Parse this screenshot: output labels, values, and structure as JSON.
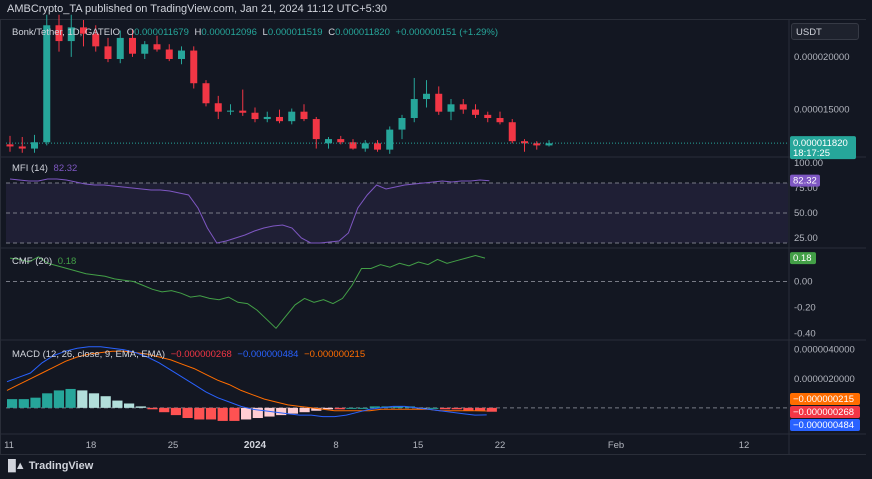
{
  "publisher": "AMBCrypto_TA published on TradingView.com, Jan 21, 2024 11:12 UTC+5:30",
  "brand": "TradingView",
  "currency": "USDT",
  "colors": {
    "up": "#26a69a",
    "down": "#f23645",
    "mfi": "#7e57c2",
    "cmf": "#43a047",
    "macd": "#2962ff",
    "signal": "#ff6d00",
    "hist_up_strong": "#26a69a",
    "hist_up_weak": "#b2dfdb",
    "hist_down_strong": "#ff5252",
    "hist_down_weak": "#ffcdd2"
  },
  "price_legend": {
    "symbol": "Bonk/Tether, 1D, GATEIO",
    "o_label": "O",
    "o": "0.000011679",
    "h_label": "H",
    "h": "0.000012096",
    "l_label": "L",
    "l": "0.000011519",
    "c_label": "C",
    "c": "0.000011820",
    "change": "+0.000000151 (+1.29%)"
  },
  "mfi_legend": {
    "name": "MFI (14)",
    "value": "82.32"
  },
  "cmf_legend": {
    "name": "CMF (20)",
    "value": "0.18"
  },
  "macd_legend": {
    "name": "MACD (12, 26, close, 9, EMA, EMA)",
    "hist": "−0.000000268",
    "macd": "−0.000000484",
    "signal": "−0.000000215"
  },
  "chart_data": [
    {
      "type": "candlestick",
      "name": "Bonk/Tether, 1D, GATEIO",
      "ylim": [
        1.05e-05,
        2.35e-05
      ],
      "y_ticks": [
        "0.000020000",
        "0.000015000"
      ],
      "x_ticks": [
        "11",
        "18",
        "25",
        "2024",
        "8",
        "15",
        "22",
        "Feb",
        "12"
      ],
      "last_price": "0.000011820",
      "countdown": "18:17:25",
      "candles": [
        {
          "o": 1.17e-05,
          "h": 1.25e-05,
          "l": 1.1e-05,
          "c": 1.15e-05
        },
        {
          "o": 1.15e-05,
          "h": 1.24e-05,
          "l": 1.09e-05,
          "c": 1.13e-05
        },
        {
          "o": 1.13e-05,
          "h": 1.26e-05,
          "l": 1.09e-05,
          "c": 1.19e-05
        },
        {
          "o": 1.19e-05,
          "h": 2.4e-05,
          "l": 1.16e-05,
          "c": 2.3e-05
        },
        {
          "o": 2.3e-05,
          "h": 2.4e-05,
          "l": 2.05e-05,
          "c": 2.15e-05
        },
        {
          "o": 2.15e-05,
          "h": 2.4e-05,
          "l": 2e-05,
          "c": 2.28e-05
        },
        {
          "o": 2.28e-05,
          "h": 2.35e-05,
          "l": 2.1e-05,
          "c": 2.22e-05
        },
        {
          "o": 2.22e-05,
          "h": 2.3e-05,
          "l": 2.05e-05,
          "c": 2.1e-05
        },
        {
          "o": 2.1e-05,
          "h": 2.18e-05,
          "l": 1.95e-05,
          "c": 1.98e-05
        },
        {
          "o": 1.98e-05,
          "h": 2.25e-05,
          "l": 1.94e-05,
          "c": 2.18e-05
        },
        {
          "o": 2.18e-05,
          "h": 2.26e-05,
          "l": 2e-05,
          "c": 2.03e-05
        },
        {
          "o": 2.03e-05,
          "h": 2.15e-05,
          "l": 1.98e-05,
          "c": 2.12e-05
        },
        {
          "o": 2.12e-05,
          "h": 2.2e-05,
          "l": 2.05e-05,
          "c": 2.07e-05
        },
        {
          "o": 2.07e-05,
          "h": 2.12e-05,
          "l": 1.96e-05,
          "c": 1.98e-05
        },
        {
          "o": 1.98e-05,
          "h": 2.1e-05,
          "l": 1.93e-05,
          "c": 2.06e-05
        },
        {
          "o": 2.06e-05,
          "h": 2.1e-05,
          "l": 1.7e-05,
          "c": 1.75e-05
        },
        {
          "o": 1.75e-05,
          "h": 1.78e-05,
          "l": 1.53e-05,
          "c": 1.56e-05
        },
        {
          "o": 1.56e-05,
          "h": 1.63e-05,
          "l": 1.41e-05,
          "c": 1.48e-05
        },
        {
          "o": 1.48e-05,
          "h": 1.55e-05,
          "l": 1.45e-05,
          "c": 1.49e-05
        },
        {
          "o": 1.49e-05,
          "h": 1.69e-05,
          "l": 1.44e-05,
          "c": 1.47e-05
        },
        {
          "o": 1.47e-05,
          "h": 1.52e-05,
          "l": 1.38e-05,
          "c": 1.41e-05
        },
        {
          "o": 1.41e-05,
          "h": 1.48e-05,
          "l": 1.38e-05,
          "c": 1.43e-05
        },
        {
          "o": 1.43e-05,
          "h": 1.5e-05,
          "l": 1.37e-05,
          "c": 1.39e-05
        },
        {
          "o": 1.39e-05,
          "h": 1.51e-05,
          "l": 1.36e-05,
          "c": 1.48e-05
        },
        {
          "o": 1.48e-05,
          "h": 1.55e-05,
          "l": 1.39e-05,
          "c": 1.41e-05
        },
        {
          "o": 1.41e-05,
          "h": 1.43e-05,
          "l": 1.13e-05,
          "c": 1.22e-05
        },
        {
          "o": 1.18e-05,
          "h": 1.24e-05,
          "l": 1.13e-05,
          "c": 1.22e-05
        },
        {
          "o": 1.22e-05,
          "h": 1.25e-05,
          "l": 1.17e-05,
          "c": 1.19e-05
        },
        {
          "o": 1.19e-05,
          "h": 1.22e-05,
          "l": 1.12e-05,
          "c": 1.13e-05
        },
        {
          "o": 1.13e-05,
          "h": 1.21e-05,
          "l": 1.1e-05,
          "c": 1.18e-05
        },
        {
          "o": 1.18e-05,
          "h": 1.21e-05,
          "l": 1.1e-05,
          "c": 1.12e-05
        },
        {
          "o": 1.12e-05,
          "h": 1.34e-05,
          "l": 1.08e-05,
          "c": 1.31e-05
        },
        {
          "o": 1.31e-05,
          "h": 1.45e-05,
          "l": 1.22e-05,
          "c": 1.42e-05
        },
        {
          "o": 1.42e-05,
          "h": 1.8e-05,
          "l": 1.38e-05,
          "c": 1.6e-05
        },
        {
          "o": 1.6e-05,
          "h": 1.78e-05,
          "l": 1.52e-05,
          "c": 1.65e-05
        },
        {
          "o": 1.65e-05,
          "h": 1.72e-05,
          "l": 1.45e-05,
          "c": 1.48e-05
        },
        {
          "o": 1.48e-05,
          "h": 1.6e-05,
          "l": 1.4e-05,
          "c": 1.55e-05
        },
        {
          "o": 1.55e-05,
          "h": 1.6e-05,
          "l": 1.46e-05,
          "c": 1.5e-05
        },
        {
          "o": 1.5e-05,
          "h": 1.55e-05,
          "l": 1.42e-05,
          "c": 1.45e-05
        },
        {
          "o": 1.45e-05,
          "h": 1.48e-05,
          "l": 1.38e-05,
          "c": 1.42e-05
        },
        {
          "o": 1.42e-05,
          "h": 1.48e-05,
          "l": 1.36e-05,
          "c": 1.38e-05
        },
        {
          "o": 1.38e-05,
          "h": 1.41e-05,
          "l": 1.18e-05,
          "c": 1.2e-05
        },
        {
          "o": 1.2e-05,
          "h": 1.22e-05,
          "l": 1.1e-05,
          "c": 1.18e-05
        },
        {
          "o": 1.18e-05,
          "h": 1.2e-05,
          "l": 1.12e-05,
          "c": 1.16e-05
        },
        {
          "o": 1.16e-05,
          "h": 1.21e-05,
          "l": 1.15e-05,
          "c": 1.18e-05
        }
      ]
    },
    {
      "type": "line",
      "name": "MFI (14)",
      "ylim": [
        15,
        105
      ],
      "y_ticks": [
        "100.00",
        "75.00",
        "50.00",
        "25.00"
      ],
      "bands": [
        20,
        50,
        80
      ],
      "last": "82.32",
      "values": [
        84,
        83,
        82,
        82,
        84,
        84,
        83,
        81,
        79,
        78,
        78,
        77,
        76,
        75,
        74,
        73,
        73,
        72,
        70,
        68,
        55,
        35,
        20,
        22,
        25,
        28,
        32,
        35,
        37,
        38,
        35,
        25,
        20,
        20,
        21,
        22,
        30,
        55,
        68,
        78,
        74,
        76,
        78,
        79,
        80,
        81,
        82,
        81,
        82,
        82,
        83,
        82.32
      ]
    },
    {
      "type": "line",
      "name": "CMF (20)",
      "ylim": [
        -0.45,
        0.25
      ],
      "y_ticks": [
        "0.00",
        "-0.20",
        "-0.40"
      ],
      "zero_line": 0,
      "last": "0.18",
      "values": [
        0.18,
        0.17,
        0.15,
        0.19,
        0.14,
        0.12,
        0.1,
        0.08,
        0.06,
        0.05,
        0.04,
        0.02,
        0.01,
        0.0,
        -0.03,
        -0.06,
        -0.08,
        -0.07,
        -0.09,
        -0.12,
        -0.11,
        -0.13,
        -0.14,
        -0.12,
        -0.16,
        -0.17,
        -0.22,
        -0.29,
        -0.36,
        -0.27,
        -0.18,
        -0.13,
        -0.16,
        -0.14,
        -0.17,
        -0.13,
        -0.03,
        0.1,
        0.1,
        0.13,
        0.11,
        0.14,
        0.12,
        0.15,
        0.13,
        0.17,
        0.14,
        0.16,
        0.18,
        0.2,
        0.18
      ]
    },
    {
      "type": "bar+line",
      "name": "MACD (12, 26, close, 9, EMA, EMA)",
      "ylim": [
        -1.8e-06,
        4.6e-06
      ],
      "y_ticks": [
        "0.0000040000",
        "0.0000020000"
      ],
      "zero_line": 0,
      "labels": [
        "−0.000000215",
        "−0.000000268",
        "−0.000000484"
      ],
      "macd": [
        1.8e-06,
        2.1e-06,
        2.4e-06,
        3.1e-06,
        3.6e-06,
        3.9e-06,
        4.1e-06,
        4.2e-06,
        4.2e-06,
        4.1e-06,
        4e-06,
        3.8e-06,
        3.5e-06,
        3.1e-06,
        2.6e-06,
        2.1e-06,
        1.6e-06,
        1.1e-06,
        7e-07,
        4e-07,
        1e-07,
        -1e-07,
        -2e-07,
        -3e-07,
        -4e-07,
        -5e-07,
        -5e-07,
        -6e-07,
        -6e-07,
        -5e-07,
        -3e-07,
        -1e-07,
        0.0,
        1e-07,
        1e-07,
        0.0,
        -1e-07,
        -2e-07,
        -3e-07,
        -4e-07,
        -5e-07,
        -4.84e-07
      ],
      "signal": [
        1.2e-06,
        1.6e-06,
        2e-06,
        2.4e-06,
        2.8e-06,
        3.2e-06,
        3.5e-06,
        3.7e-06,
        3.8e-06,
        3.9e-06,
        3.9e-06,
        3.8e-06,
        3.7e-06,
        3.5e-06,
        3.3e-06,
        3e-06,
        2.7e-06,
        2.3e-06,
        1.9e-06,
        1.6e-06,
        1.2e-06,
        9e-07,
        6e-07,
        4e-07,
        2e-07,
        1e-07,
        0.0,
        -1e-07,
        -2e-07,
        -2e-07,
        -2e-07,
        -2e-07,
        -1e-07,
        -1e-07,
        -1e-07,
        -1e-07,
        -1e-07,
        -2e-07,
        -2e-07,
        -2e-07,
        -2e-07,
        -2.15e-07
      ],
      "hist": [
        6e-07,
        6e-07,
        7e-07,
        1e-06,
        1.2e-06,
        1.3e-06,
        1.2e-06,
        1e-06,
        8e-07,
        5e-07,
        3e-07,
        1e-07,
        -1e-07,
        -3e-07,
        -5e-07,
        -7e-07,
        -8e-07,
        -8e-07,
        -9e-07,
        -9e-07,
        -8e-07,
        -7e-07,
        -6e-07,
        -5e-07,
        -4e-07,
        -3e-07,
        -2e-07,
        -1e-07,
        -1e-07,
        0.0,
        0.0,
        1e-07,
        1e-07,
        1e-07,
        1e-07,
        0.0,
        0.0,
        -1e-07,
        -1e-07,
        -2e-07,
        -2e-07,
        -2.68e-07
      ]
    }
  ]
}
